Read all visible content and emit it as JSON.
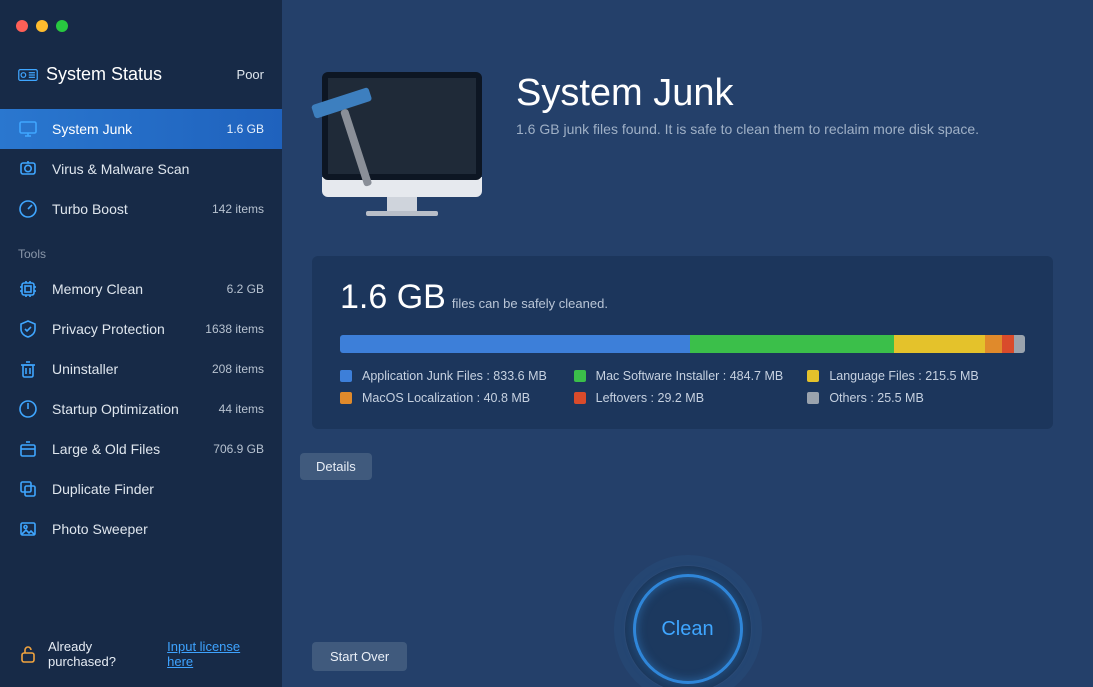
{
  "window": {
    "traffic_colors": {
      "close": "#ff5f57",
      "minimize": "#febc2e",
      "zoom": "#28c840"
    }
  },
  "sidebar": {
    "header": {
      "title": "System Status",
      "status_value": "Poor"
    },
    "primary": [
      {
        "id": "system-junk",
        "label": "System Junk",
        "meta": "1.6 GB",
        "active": true,
        "icon": "monitor"
      },
      {
        "id": "virus-scan",
        "label": "Virus & Malware Scan",
        "meta": "",
        "active": false,
        "icon": "bug"
      },
      {
        "id": "turbo-boost",
        "label": "Turbo Boost",
        "meta": "142 items",
        "active": false,
        "icon": "gauge"
      }
    ],
    "tools_label": "Tools",
    "tools": [
      {
        "id": "memory-clean",
        "label": "Memory Clean",
        "meta": "6.2 GB",
        "icon": "chip"
      },
      {
        "id": "privacy",
        "label": "Privacy Protection",
        "meta": "1638 items",
        "icon": "shield"
      },
      {
        "id": "uninstaller",
        "label": "Uninstaller",
        "meta": "208 items",
        "icon": "trash"
      },
      {
        "id": "startup",
        "label": "Startup Optimization",
        "meta": "44 items",
        "icon": "power"
      },
      {
        "id": "large-old",
        "label": "Large & Old Files",
        "meta": "706.9 GB",
        "icon": "box"
      },
      {
        "id": "duplicate",
        "label": "Duplicate Finder",
        "meta": "",
        "icon": "copies"
      },
      {
        "id": "photo-sweeper",
        "label": "Photo Sweeper",
        "meta": "",
        "icon": "image"
      }
    ],
    "footer": {
      "prompt": "Already purchased?",
      "link_text": "Input license here"
    }
  },
  "main": {
    "title": "System Junk",
    "subtitle": "1.6 GB junk files found.  It is safe to clean them to reclaim more disk space.",
    "panel": {
      "total_label": "1.6 GB",
      "total_sub": " files can be safely cleaned.",
      "segments": [
        {
          "label": "Application Junk Files",
          "value_text": "833.6 MB",
          "mb": 833.6,
          "color": "#3d7fd9"
        },
        {
          "label": "Mac Software Installer",
          "value_text": "484.7 MB",
          "mb": 484.7,
          "color": "#3bbf4a"
        },
        {
          "label": "Language Files",
          "value_text": "215.5 MB",
          "mb": 215.5,
          "color": "#e4c22b"
        },
        {
          "label": "MacOS Localization",
          "value_text": "40.8 MB",
          "mb": 40.8,
          "color": "#e08a2b"
        },
        {
          "label": "Leftovers",
          "value_text": "29.2 MB",
          "mb": 29.2,
          "color": "#d94b2b"
        },
        {
          "label": "Others",
          "value_text": "25.5 MB",
          "mb": 25.5,
          "color": "#9aa3ad"
        }
      ],
      "legend_order": [
        0,
        1,
        2,
        3,
        4,
        5
      ]
    },
    "details_button": "Details",
    "clean_button": "Clean",
    "start_over_button": "Start Over"
  },
  "colors": {
    "sidebar_bg": "#172a47",
    "main_bg": "#24406a",
    "panel_bg": "#1c365c",
    "accent": "#3fa6ff",
    "text_primary": "#ffffff",
    "text_muted": "#9fb0c6"
  }
}
